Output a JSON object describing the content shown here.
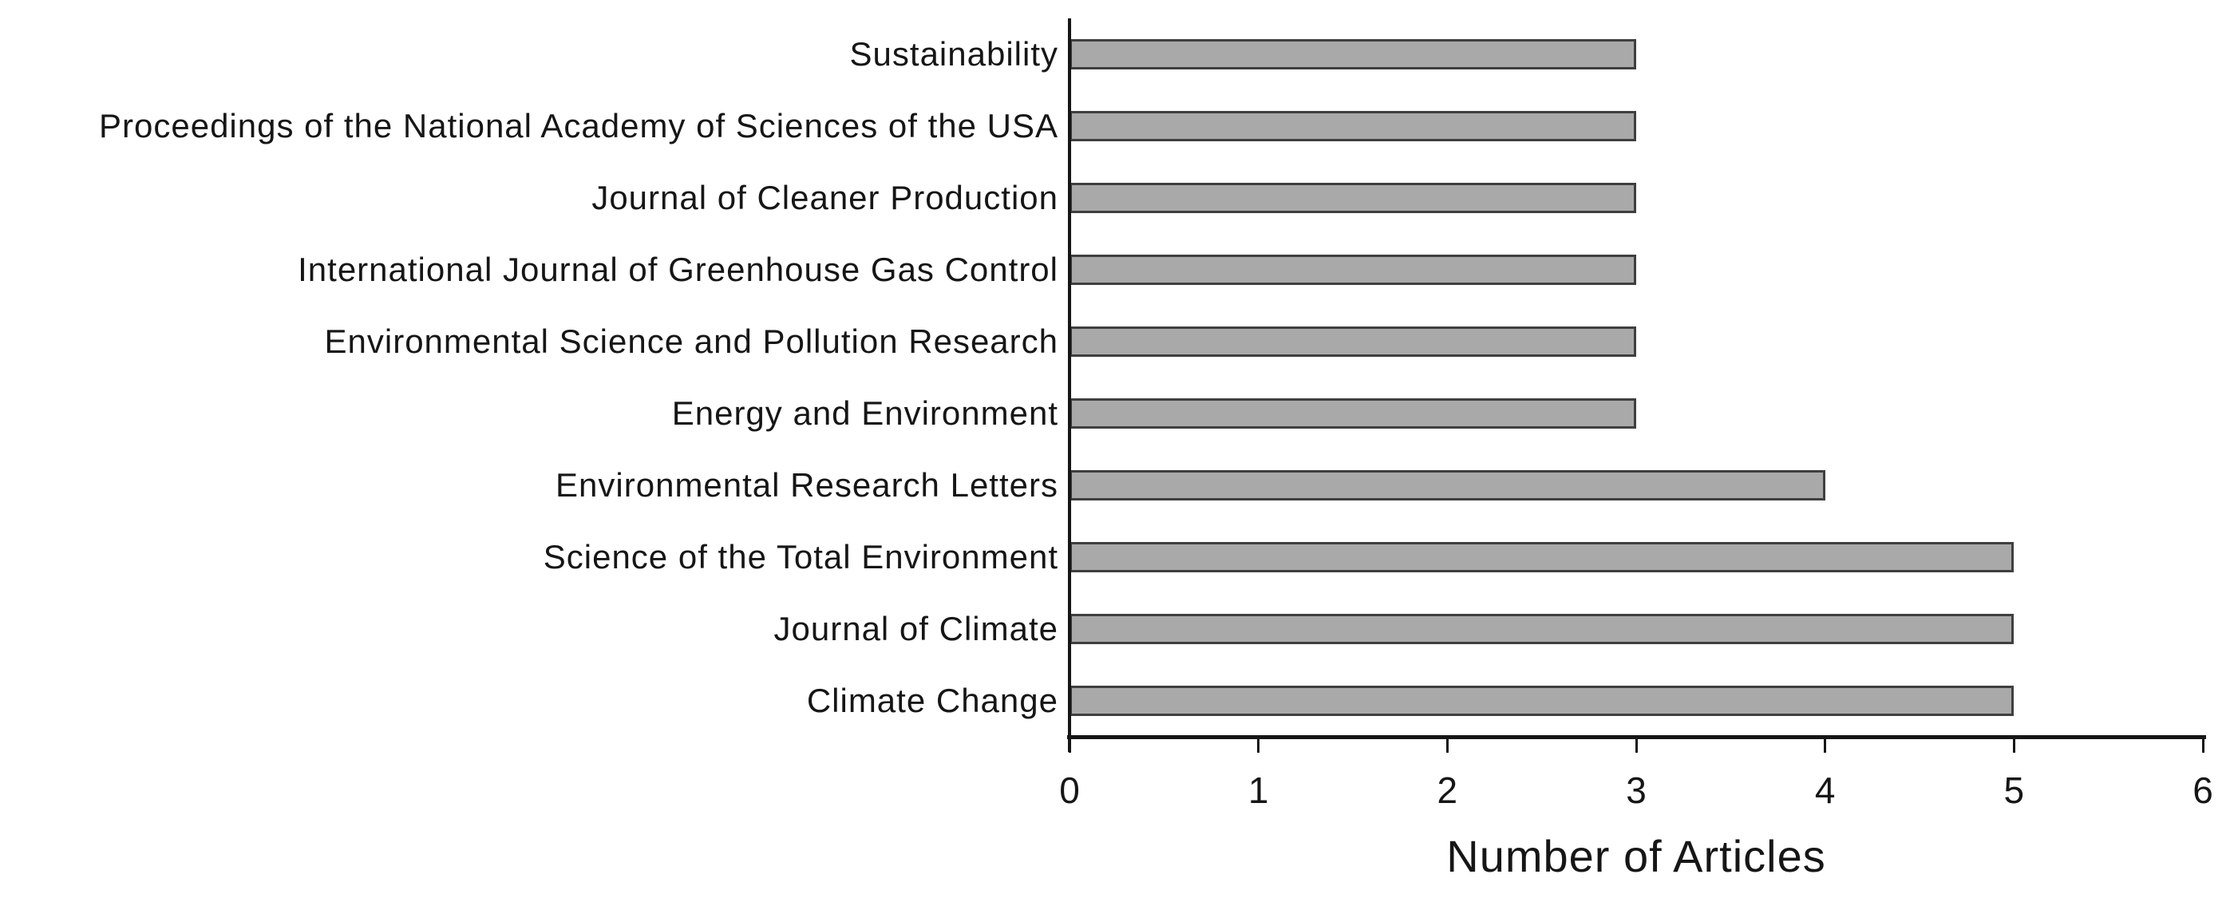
{
  "chart_data": {
    "type": "bar",
    "orientation": "horizontal",
    "title": "",
    "xlabel": "Number of Articles",
    "ylabel": "",
    "categories": [
      "Sustainability",
      "Proceedings of the National Academy of Sciences of the USA",
      "Journal of Cleaner Production",
      "International Journal of Greenhouse Gas Control",
      "Environmental Science and Pollution Research",
      "Energy and Environment",
      "Environmental Research Letters",
      "Science of the Total Environment",
      "Journal of Climate",
      "Climate Change"
    ],
    "values": [
      3,
      3,
      3,
      3,
      3,
      3,
      4,
      5,
      5,
      5
    ],
    "xlim": [
      0,
      6
    ],
    "xticks": [
      0,
      1,
      2,
      3,
      4,
      5,
      6
    ],
    "grid": false,
    "legend": false,
    "bar_fill": "#A9A9A9",
    "bar_border": "#3F3F3F",
    "axis_color": "#161616",
    "text_color": "#161616",
    "background": "#FFFFFF"
  }
}
